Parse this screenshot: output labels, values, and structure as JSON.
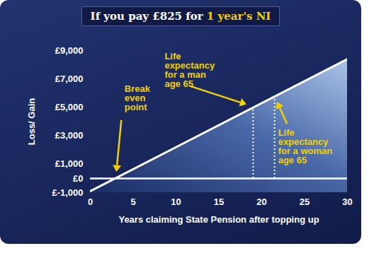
{
  "chart_data": {
    "type": "line",
    "title": "If you pay £825 for 1 year's NI",
    "title_highlight": "1 year's NI",
    "x": [
      0,
      30
    ],
    "values": [
      -900,
      8400
    ],
    "color": "#ffffff",
    "xlim": [
      0,
      30
    ],
    "xticks": [
      0,
      5,
      10,
      15,
      20,
      25,
      30
    ],
    "ylim": [
      -1000,
      9000
    ],
    "yticks": [
      {
        "value": -1000,
        "label": "£-1,000"
      },
      {
        "value": 0,
        "label": "£0"
      },
      {
        "value": 1000,
        "label": "£1,000"
      },
      {
        "value": 3000,
        "label": "£3,000"
      },
      {
        "value": 5000,
        "label": "£5,000"
      },
      {
        "value": 7000,
        "label": "£7,000"
      },
      {
        "value": 9000,
        "label": "£9,000"
      }
    ],
    "xlabel": "Years claiming State Pension after topping up",
    "ylabel": "Loss/ Gain",
    "annotations": [
      {
        "text": [
          "Break",
          "even",
          "point"
        ],
        "x": 3,
        "y": 0
      },
      {
        "text": [
          "Life",
          "expectancy",
          "for a man",
          "age 65"
        ],
        "x": 19,
        "y": 4990
      },
      {
        "text": [
          "Life",
          "expectancy",
          "for a woman",
          "age 65"
        ],
        "x": 21.5,
        "y": 5765
      }
    ]
  }
}
